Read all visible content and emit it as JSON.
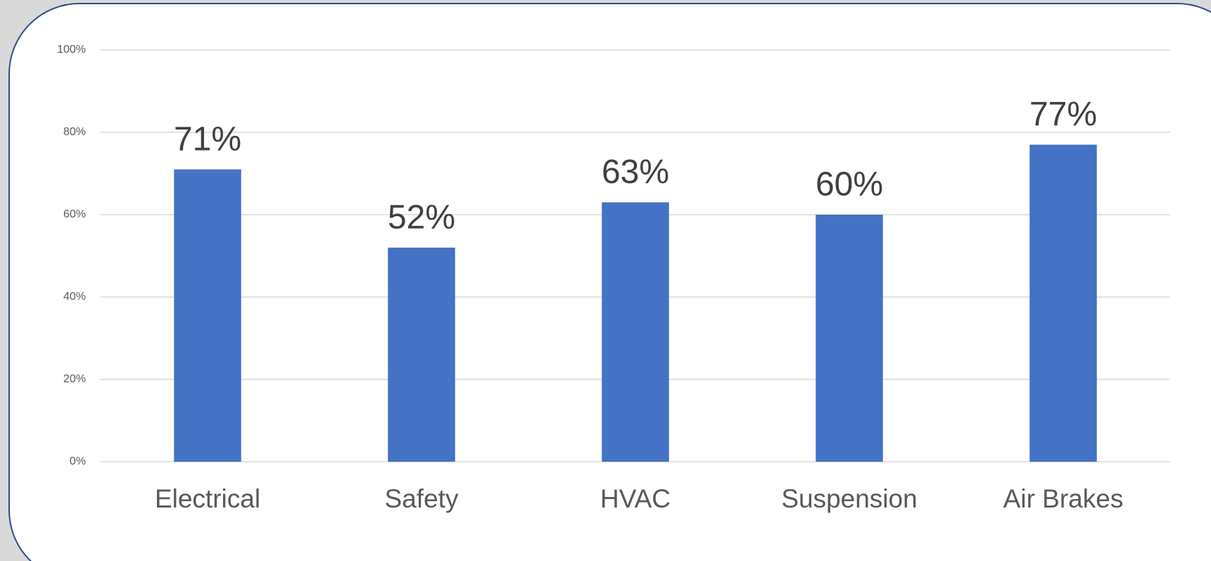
{
  "chart_data": {
    "type": "bar",
    "categories": [
      "Electrical",
      "Safety",
      "HVAC",
      "Suspension",
      "Air Brakes"
    ],
    "values": [
      71,
      52,
      63,
      60,
      77
    ],
    "value_labels": [
      "71%",
      "52%",
      "63%",
      "60%",
      "77%"
    ],
    "color": "#4472c4",
    "ylim": [
      0,
      100
    ],
    "yticks": [
      {
        "value": 0,
        "label": "0%"
      },
      {
        "value": 20,
        "label": "20%"
      },
      {
        "value": 40,
        "label": "40%"
      },
      {
        "value": 60,
        "label": "60%"
      },
      {
        "value": 80,
        "label": "80%"
      },
      {
        "value": 100,
        "label": "100%"
      }
    ],
    "grid": true
  }
}
